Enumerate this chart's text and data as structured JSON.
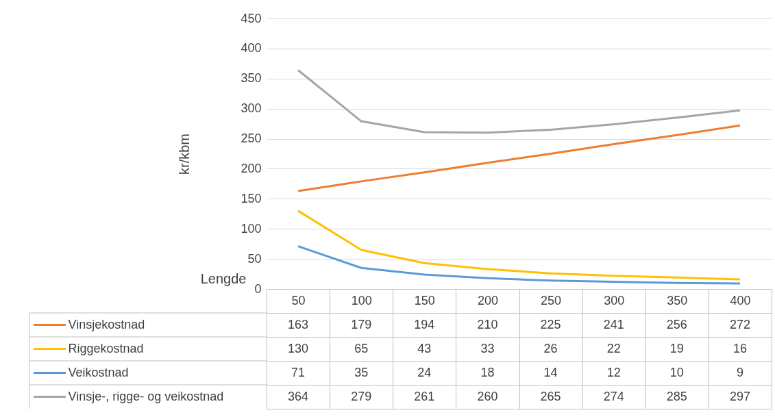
{
  "chart_data": {
    "type": "line",
    "xlabel": "Lengde",
    "ylabel": "kr/kbm",
    "categories": [
      "50",
      "100",
      "150",
      "200",
      "250",
      "300",
      "350",
      "400"
    ],
    "ylim": [
      0,
      450
    ],
    "yticks": [
      0,
      50,
      100,
      150,
      200,
      250,
      300,
      350,
      400,
      450
    ],
    "grid": "y",
    "legend": "bottom",
    "data_labels": true,
    "series": [
      {
        "name": "Vinsjekostnad",
        "color": "#ed7d31",
        "values": [
          163,
          179,
          194,
          210,
          225,
          241,
          256,
          272
        ]
      },
      {
        "name": "Riggekostnad",
        "color": "#ffc000",
        "values": [
          130,
          65,
          43,
          33,
          26,
          22,
          19,
          16
        ]
      },
      {
        "name": "Veikostnad",
        "color": "#5b9bd5",
        "values": [
          71,
          35,
          24,
          18,
          14,
          12,
          10,
          9
        ]
      },
      {
        "name": "Vinsje-, rigge- og veikostnad",
        "color": "#a5a5a5",
        "values": [
          364,
          279,
          261,
          260,
          265,
          274,
          285,
          297
        ]
      }
    ]
  }
}
